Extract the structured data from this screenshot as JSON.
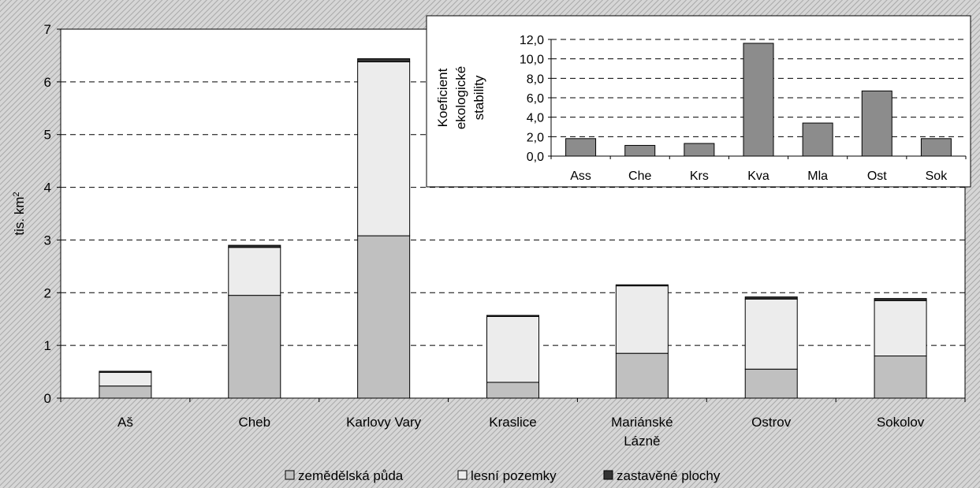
{
  "colors": {
    "background_hatch": "#b8b8b8",
    "plot_bg": "#ffffff",
    "agri": "#c0c0c0",
    "forest": "#ececec",
    "built": "#333333",
    "inset_bar": "#8c8c8c"
  },
  "chart_data": [
    {
      "type": "bar",
      "stacked": true,
      "categories": [
        "Aš",
        "Cheb",
        "Karlovy Vary",
        "Kraslice",
        "Mariánské Lázně",
        "Ostrov",
        "Sokolov"
      ],
      "category_lines": [
        [
          "Aš"
        ],
        [
          "Cheb"
        ],
        [
          "Karlovy Vary"
        ],
        [
          "Kraslice"
        ],
        [
          "Mariánské",
          "Lázně"
        ],
        [
          "Ostrov"
        ],
        [
          "Sokolov"
        ]
      ],
      "series": [
        {
          "name": "zemědělská půda",
          "values": [
            0.23,
            1.95,
            3.08,
            0.3,
            0.85,
            0.55,
            0.8
          ]
        },
        {
          "name": "lesní pozemky",
          "values": [
            0.26,
            0.91,
            3.3,
            1.25,
            1.28,
            1.33,
            1.05
          ]
        },
        {
          "name": "zastavěné plochy",
          "values": [
            0.02,
            0.04,
            0.06,
            0.02,
            0.02,
            0.04,
            0.04
          ]
        }
      ],
      "ylabel": "tis. km",
      "ylabel_sup": "2",
      "ylim": [
        0,
        7
      ],
      "yticks": [
        0,
        1,
        2,
        3,
        4,
        5,
        6,
        7
      ],
      "grid": true,
      "legend": "bottom"
    },
    {
      "type": "bar",
      "categories": [
        "Ass",
        "Che",
        "Krs",
        "Kva",
        "Mla",
        "Ost",
        "Sok"
      ],
      "values": [
        1.8,
        1.1,
        1.3,
        11.6,
        3.4,
        6.7,
        1.8
      ],
      "ylabel_lines": [
        "Koeficient",
        "ekologické",
        "stability"
      ],
      "ylim": [
        0,
        12
      ],
      "yticks": [
        "0,0",
        "2,0",
        "4,0",
        "6,0",
        "8,0",
        "10,0",
        "12,0"
      ],
      "grid": true,
      "position": "top-right inset"
    }
  ]
}
